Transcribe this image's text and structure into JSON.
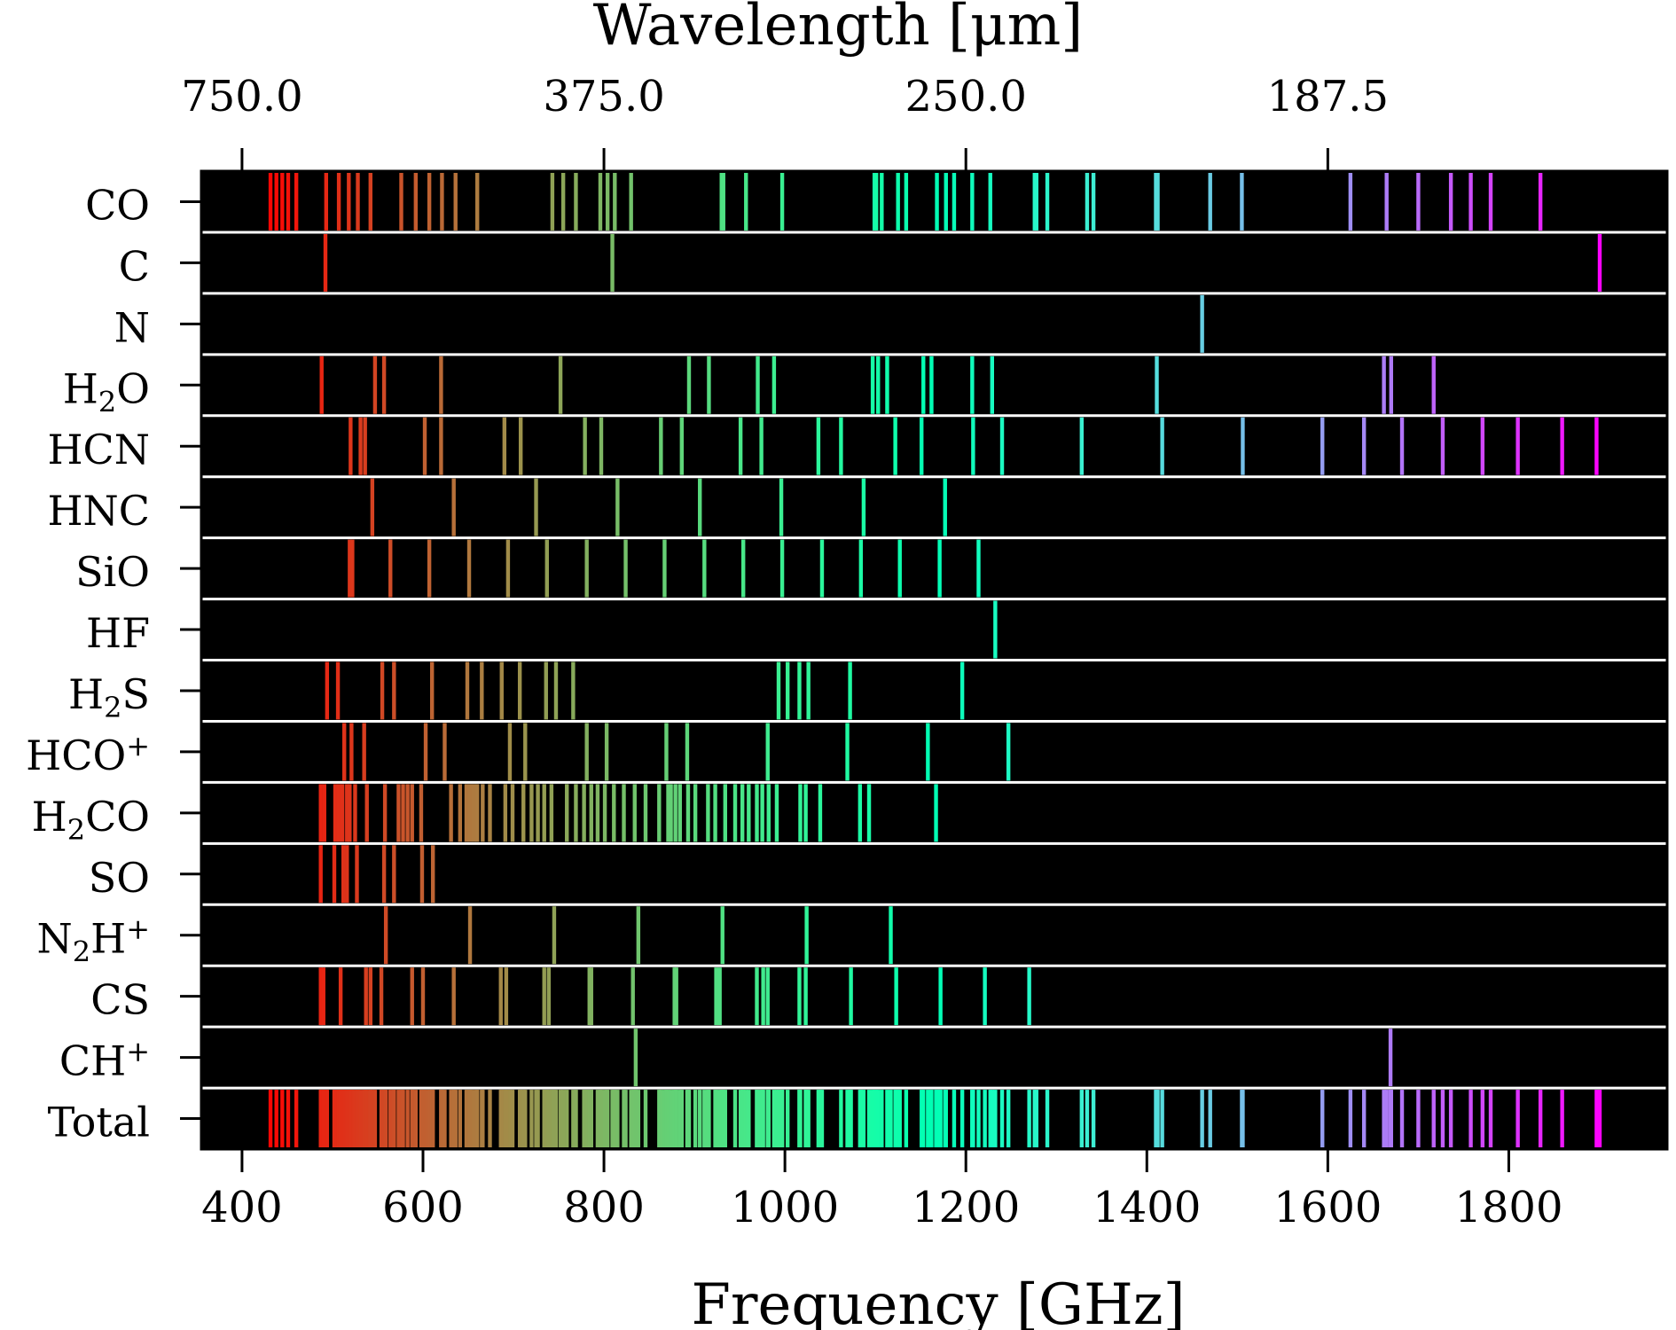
{
  "chart_data": {
    "type": "spectral-lines",
    "xlabel": "Frequency [GHz]",
    "x2label": "Wavelength [μm]",
    "xlim": [
      355,
      1975
    ],
    "xticks": [
      "400",
      "600",
      "800",
      "1000",
      "1200",
      "1400",
      "1600",
      "1800"
    ],
    "xtick_values": [
      400,
      600,
      800,
      1000,
      1200,
      1400,
      1600,
      1800
    ],
    "top_ticks": [
      "750.0",
      "375.0",
      "250.0",
      "187.5"
    ],
    "top_tick_frequencies": [
      400,
      800,
      1200,
      1600
    ],
    "colormap": "rainbow",
    "background": "#000000",
    "series": [
      {
        "name": "CO",
        "label": "CO",
        "lines": [
          431.5,
          438,
          444.5,
          451,
          460,
          493,
          507,
          518,
          528,
          542,
          576,
          592,
          607,
          621,
          636,
          660,
          743,
          755,
          769,
          796,
          804,
          812,
          830,
          930,
          932,
          957,
          997,
          1099,
          1101,
          1107,
          1125,
          1134,
          1168,
          1178,
          1187,
          1207,
          1227,
          1276,
          1278,
          1290,
          1334,
          1341,
          1410,
          1412,
          1470,
          1505,
          1625,
          1665,
          1700,
          1736,
          1758,
          1780,
          1835
        ]
      },
      {
        "name": "C",
        "label": "C",
        "lines": [
          492.2,
          809.3,
          1900.5
        ]
      },
      {
        "name": "N",
        "label": "N",
        "lines": [
          1461.1
        ]
      },
      {
        "name": "H2O",
        "label": "H₂O",
        "sub": "2",
        "pre": "H",
        "post": "O",
        "lines": [
          488,
          547,
          557,
          620,
          752,
          894,
          916,
          970,
          988,
          1097,
          1103,
          1113,
          1153,
          1162,
          1207,
          1229,
          1411,
          1662,
          1670,
          1717
        ]
      },
      {
        "name": "HCN",
        "label": "HCN",
        "lines": [
          520,
          531,
          536,
          602,
          620,
          690,
          708,
          779,
          797,
          863,
          886,
          951,
          974,
          1037,
          1062,
          1122,
          1151,
          1208,
          1240,
          1328,
          1417,
          1506,
          1594,
          1640,
          1682,
          1727,
          1771,
          1810,
          1859,
          1897
        ]
      },
      {
        "name": "HNC",
        "label": "HNC",
        "lines": [
          544,
          634,
          725,
          815,
          906,
          996,
          1087,
          1177
        ]
      },
      {
        "name": "SiO",
        "label": "SiO",
        "lines": [
          519,
          522,
          564,
          607,
          651,
          694,
          737,
          781,
          824,
          867,
          911,
          954,
          997,
          1041,
          1084,
          1127,
          1171,
          1214
        ]
      },
      {
        "name": "HF",
        "label": "HF",
        "lines": [
          1232.5
        ]
      },
      {
        "name": "H2S",
        "label": "H₂S",
        "sub": "2",
        "pre": "H",
        "post": "S",
        "lines": [
          494,
          506,
          555,
          568,
          610,
          649,
          665,
          687,
          707,
          736,
          747,
          766,
          993,
          1003,
          1016,
          1026,
          1072,
          1196
        ]
      },
      {
        "name": "HCO+",
        "label": "HCO⁺",
        "sup": "+",
        "pre": "HCO",
        "post": "",
        "lines": [
          513,
          521,
          535,
          603,
          624,
          696,
          713,
          781,
          803,
          869,
          892,
          981,
          1069,
          1158,
          1247
        ]
      },
      {
        "name": "H2CO",
        "label": "H₂CO",
        "sub": "2",
        "pre": "H",
        "post": "CO",
        "lines": [
          487,
          491,
          503,
          507,
          511,
          516,
          519,
          525,
          538,
          558,
          573,
          578,
          583,
          588,
          598,
          631,
          641,
          648,
          652,
          656,
          660,
          666,
          674,
          691,
          699,
          711,
          720,
          727,
          734,
          742,
          759,
          769,
          778,
          786,
          793,
          801,
          811,
          822,
          834,
          846,
          861,
          871,
          874,
          879,
          884,
          893,
          901,
          915,
          923,
          934,
          945,
          953,
          960,
          969,
          975,
          982,
          991,
          1017,
          1023,
          1039,
          1083,
          1093,
          1167
        ]
      },
      {
        "name": "SO",
        "label": "SO",
        "lines": [
          487,
          502,
          512,
          516,
          527,
          557,
          568,
          599,
          611
        ]
      },
      {
        "name": "N2H+",
        "label": "N₂H⁺",
        "sub": "2",
        "sup": "+",
        "pre": "N",
        "post": "H",
        "lines": [
          559,
          652,
          745,
          838,
          931,
          1024,
          1117
        ]
      },
      {
        "name": "CS",
        "label": "CS",
        "lines": [
          487,
          490,
          509,
          537,
          542,
          554,
          588,
          600,
          634,
          686,
          692,
          734,
          739,
          784,
          786,
          832,
          878,
          880,
          924,
          928,
          969,
          976,
          981,
          1016,
          1023,
          1073,
          1123,
          1172,
          1221,
          1270
        ]
      },
      {
        "name": "CH+",
        "label": "CH⁺",
        "sup": "+",
        "pre": "CH",
        "post": "",
        "lines": [
          835.1,
          1669.3
        ]
      },
      {
        "name": "Total",
        "label": "Total",
        "total": true,
        "lines": []
      }
    ]
  }
}
